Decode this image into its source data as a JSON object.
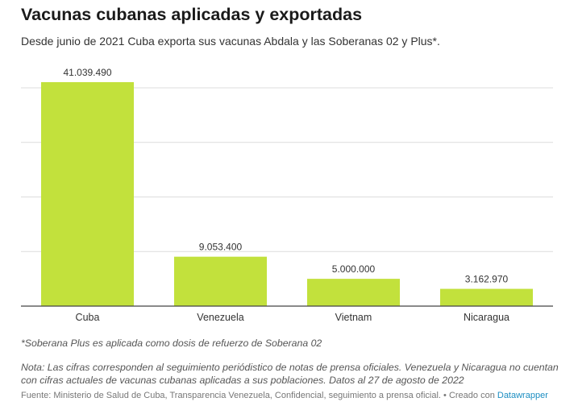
{
  "title": "Vacunas cubanas aplicadas y exportadas",
  "subtitle": "Desde junio de 2021 Cuba exporta sus vacunas Abdala y las Soberanas 02 y Plus*.",
  "chart_data": {
    "type": "bar",
    "categories": [
      "Cuba",
      "Venezuela",
      "Vietnam",
      "Nicaragua"
    ],
    "values": [
      41039490,
      9053400,
      5000000,
      3162970
    ],
    "value_labels": [
      "41.039.490",
      "9.053.400",
      "5.000.000",
      "3.162.970"
    ],
    "ylim": [
      0,
      40000000
    ],
    "grid": true,
    "bar_color": "#c2e13c",
    "xlabel": "",
    "ylabel": ""
  },
  "footnote": "*Soberana Plus es aplicada como dosis de refuerzo de Soberana 02",
  "note": "Nota: Las cifras corresponden al seguimiento periódistico de notas de prensa oficiales. Venezuela y Nicaragua no cuentan con cifras actuales de vacunas cubanas aplicadas a sus poblaciones. Datos al 27 de agosto de 2022",
  "source": {
    "text": "Fuente: Ministerio de Salud de Cuba, Transparencia Venezuela, Confidencial, seguimiento a prensa oficial. • Creado con ",
    "link": "Datawrapper"
  }
}
